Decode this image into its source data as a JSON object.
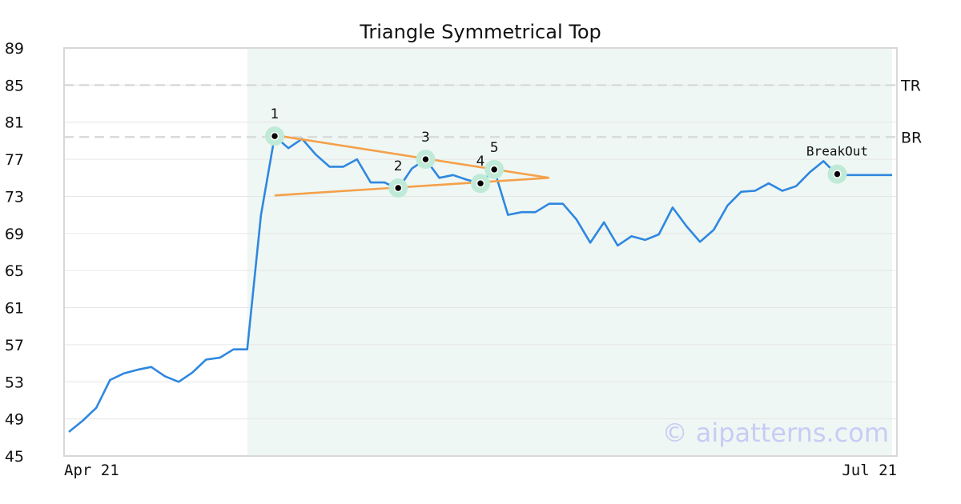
{
  "chart_data": {
    "type": "line",
    "title": "Triangle Symmetrical Top",
    "xlabel": "",
    "ylabel": "",
    "ylim": [
      45,
      89
    ],
    "yticks": [
      45,
      49,
      53,
      57,
      61,
      65,
      69,
      73,
      77,
      81,
      85,
      89
    ],
    "xlim": [
      0,
      60
    ],
    "xtick_labels": [
      {
        "x": 0,
        "label": "Apr 21"
      },
      {
        "x": 60,
        "label": "Jul 21"
      }
    ],
    "grid": true,
    "series": [
      {
        "color": "#2f87e0",
        "x": [
          0,
          1,
          2,
          3,
          4,
          5,
          6,
          7,
          8,
          9,
          10,
          11,
          12,
          13,
          14,
          15,
          16,
          17,
          18,
          19,
          20,
          21,
          22,
          23,
          24,
          25,
          26,
          27,
          28,
          29,
          30,
          31,
          32,
          33,
          34,
          35,
          36,
          37,
          38,
          39,
          40,
          41,
          42,
          43,
          44,
          45,
          46,
          47,
          48,
          49,
          50,
          51,
          52,
          53,
          54,
          55,
          56,
          57,
          58,
          59,
          60
        ],
        "y": [
          47.6,
          48.8,
          50.2,
          53.2,
          53.9,
          54.3,
          54.6,
          53.6,
          53.0,
          54.0,
          55.4,
          55.6,
          56.5,
          56.5,
          71.0,
          79.5,
          78.2,
          79.2,
          77.5,
          76.2,
          76.2,
          77.0,
          74.5,
          74.5,
          73.8,
          76.0,
          77.0,
          75.0,
          75.3,
          74.8,
          74.4,
          75.9,
          71.0,
          71.3,
          71.3,
          72.2,
          72.2,
          70.5,
          68.0,
          70.2,
          67.7,
          68.7,
          68.3,
          68.9,
          71.8,
          69.8,
          68.1,
          69.4,
          72.0,
          73.5,
          73.6,
          74.4,
          73.6,
          74.1,
          75.6,
          76.8,
          75.3,
          75.3,
          75.3,
          75.3,
          75.3
        ]
      }
    ],
    "highlight_region": {
      "x_start": 13,
      "x_end": 60,
      "color": "#eef7f3"
    },
    "reference_lines": [
      {
        "label": "TR",
        "y": 85.0
      },
      {
        "label": "BR",
        "y": 79.4
      }
    ],
    "trendlines": [
      {
        "color": "#f5a04a",
        "x1": 15,
        "y1": 79.6,
        "x2": 35,
        "y2": 75.0
      },
      {
        "color": "#f5a04a",
        "x1": 15,
        "y1": 73.1,
        "x2": 35,
        "y2": 75.0
      }
    ],
    "pattern_points": [
      {
        "label": "1",
        "x": 15,
        "y": 79.5
      },
      {
        "label": "2",
        "x": 24,
        "y": 73.9
      },
      {
        "label": "3",
        "x": 26,
        "y": 77.0
      },
      {
        "label": "4",
        "x": 30,
        "y": 74.4
      },
      {
        "label": "5",
        "x": 31,
        "y": 75.9
      }
    ],
    "breakout_point": {
      "label": "BreakOut",
      "x": 56,
      "y": 75.4
    },
    "watermark": "© aipatterns.com"
  }
}
